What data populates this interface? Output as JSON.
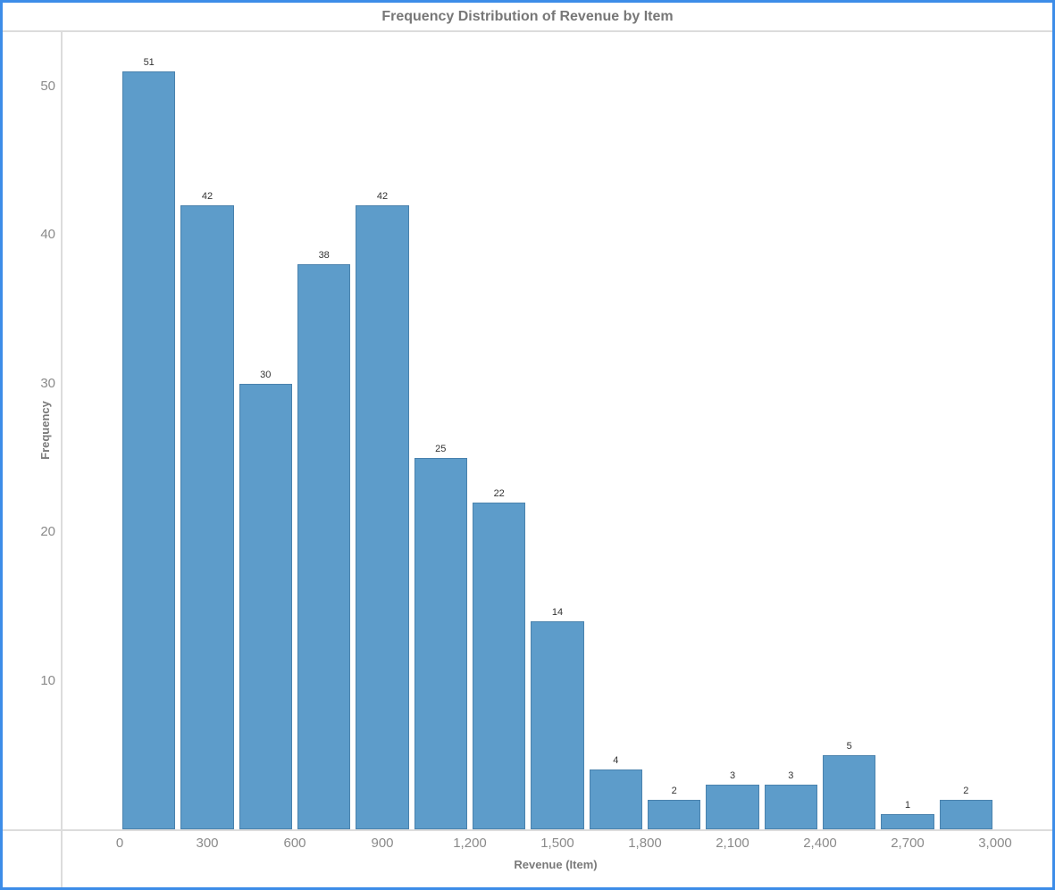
{
  "window": {
    "border_color": "#3d8de8"
  },
  "chart_data": {
    "type": "bar",
    "subtype": "histogram",
    "title": "Frequency Distribution of Revenue by Item",
    "xlabel": "Revenue (Item)",
    "ylabel": "Frequency",
    "bin_width": 200,
    "bins": [
      {
        "x0": 0,
        "x1": 200,
        "count": 51
      },
      {
        "x0": 200,
        "x1": 400,
        "count": 42
      },
      {
        "x0": 400,
        "x1": 600,
        "count": 30
      },
      {
        "x0": 600,
        "x1": 800,
        "count": 38
      },
      {
        "x0": 800,
        "x1": 1000,
        "count": 42
      },
      {
        "x0": 1000,
        "x1": 1200,
        "count": 25
      },
      {
        "x0": 1200,
        "x1": 1400,
        "count": 22
      },
      {
        "x0": 1400,
        "x1": 1600,
        "count": 14
      },
      {
        "x0": 1600,
        "x1": 1800,
        "count": 4
      },
      {
        "x0": 1800,
        "x1": 2000,
        "count": 2
      },
      {
        "x0": 2000,
        "x1": 2200,
        "count": 3
      },
      {
        "x0": 2200,
        "x1": 2400,
        "count": 3
      },
      {
        "x0": 2400,
        "x1": 2600,
        "count": 5
      },
      {
        "x0": 2600,
        "x1": 2800,
        "count": 1
      },
      {
        "x0": 2800,
        "x1": 3000,
        "count": 2
      }
    ],
    "values": [
      51,
      42,
      30,
      38,
      42,
      25,
      22,
      14,
      4,
      2,
      3,
      3,
      5,
      1,
      2
    ],
    "x_tick_values": [
      0,
      300,
      600,
      900,
      1200,
      1500,
      1800,
      2100,
      2400,
      2700,
      3000
    ],
    "x_tick_labels": [
      "0",
      "300",
      "600",
      "900",
      "1,200",
      "1,500",
      "1,800",
      "2,100",
      "2,400",
      "2,700",
      "3,000"
    ],
    "y_ticks": [
      10,
      20,
      30,
      40,
      50
    ],
    "xlim": [
      0,
      3000
    ],
    "ylim": [
      0,
      54
    ],
    "grid": "off",
    "legend": "none",
    "bar_color": "#5d9cca",
    "bar_border_color": "#4a82ad",
    "axis_line_color": "#dcdcdc",
    "label_color": "#8a8a8a"
  }
}
